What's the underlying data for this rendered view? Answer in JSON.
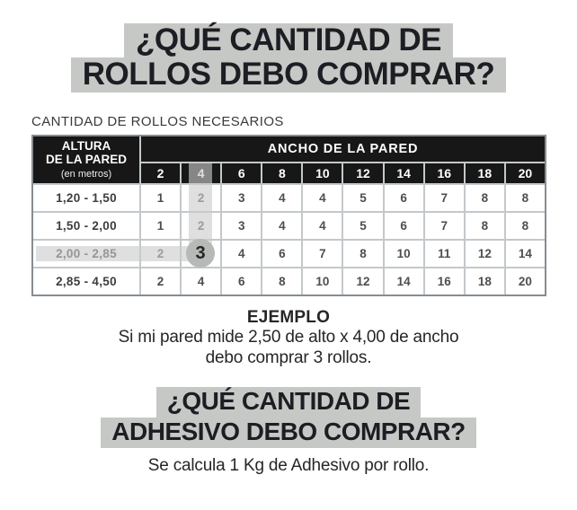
{
  "colors": {
    "highlight": "#c6c8c5",
    "title_text": "#1d1d24",
    "header_bg": "#171717",
    "header_text": "#ffffff",
    "cell_text": "#4e4e4e",
    "label_text": "#3d3d3d",
    "grid_line": "#c3c8cb",
    "outer_border": "#878d91",
    "band": "rgba(201,203,201,0.62)",
    "circle_bg": "#b7b9b7",
    "body_text": "#262626"
  },
  "header": {
    "title_line1": "¿QUÉ CANTIDAD DE",
    "title_line2": "ROLLOS DEBO COMPRAR?"
  },
  "table": {
    "caption": "CANTIDAD DE ROLLOS NECESARIOS",
    "row_axis": {
      "title": "ALTURA",
      "subtitle": "DE LA PARED",
      "unit": "(en metros)"
    },
    "col_axis_title": "ANCHO DE LA PARED",
    "col_headers": [
      "2",
      "4",
      "6",
      "8",
      "10",
      "12",
      "14",
      "16",
      "18",
      "20"
    ],
    "rows": [
      {
        "label": "1,20 - 1,50",
        "values": [
          "1",
          "2",
          "3",
          "4",
          "4",
          "5",
          "6",
          "7",
          "8",
          "8"
        ]
      },
      {
        "label": "1,50 - 2,00",
        "values": [
          "1",
          "2",
          "3",
          "4",
          "4",
          "5",
          "6",
          "7",
          "8",
          "8"
        ]
      },
      {
        "label": "2,00 - 2,85",
        "values": [
          "2",
          "3",
          "4",
          "6",
          "7",
          "8",
          "10",
          "11",
          "12",
          "14"
        ]
      },
      {
        "label": "2,85 - 4,50",
        "values": [
          "2",
          "4",
          "6",
          "8",
          "10",
          "12",
          "14",
          "16",
          "18",
          "20"
        ]
      }
    ],
    "highlight_example": {
      "circled_value": "3",
      "column_header": "4",
      "row_label": "2,00 - 2,85"
    }
  },
  "example": {
    "heading": "EJEMPLO",
    "line1": "Si mi pared mide 2,50 de alto x 4,00 de ancho",
    "line2": "debo comprar 3 rollos."
  },
  "adhesive": {
    "title_line1": "¿QUÉ CANTIDAD DE",
    "title_line2": "ADHESIVO DEBO COMPRAR?",
    "note": "Se calcula 1 Kg de Adhesivo por rollo."
  }
}
